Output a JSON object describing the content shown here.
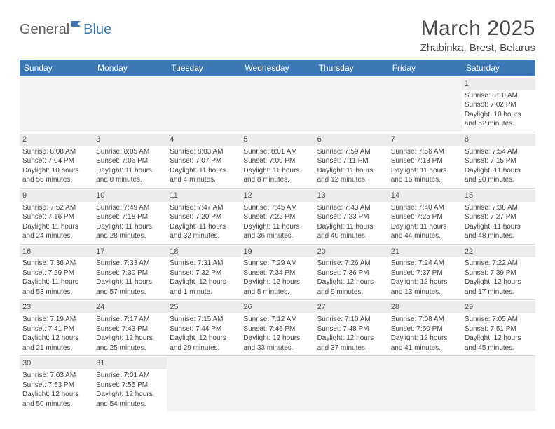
{
  "logo": {
    "general": "General",
    "blue": "Blue"
  },
  "title": "March 2025",
  "location": "Zhabinka, Brest, Belarus",
  "colors": {
    "header_bg": "#3c78b4",
    "header_text": "#ffffff",
    "page_bg": "#ffffff",
    "text": "#464646",
    "daynum_bg": "#ececec",
    "empty_bg": "#f4f4f4",
    "border": "#d8d8d8"
  },
  "columns": [
    "Sunday",
    "Monday",
    "Tuesday",
    "Wednesday",
    "Thursday",
    "Friday",
    "Saturday"
  ],
  "weeks": [
    [
      null,
      null,
      null,
      null,
      null,
      null,
      {
        "n": "1",
        "sr": "8:10 AM",
        "ss": "7:02 PM",
        "dl": "10 hours and 52 minutes."
      }
    ],
    [
      {
        "n": "2",
        "sr": "8:08 AM",
        "ss": "7:04 PM",
        "dl": "10 hours and 56 minutes."
      },
      {
        "n": "3",
        "sr": "8:05 AM",
        "ss": "7:06 PM",
        "dl": "11 hours and 0 minutes."
      },
      {
        "n": "4",
        "sr": "8:03 AM",
        "ss": "7:07 PM",
        "dl": "11 hours and 4 minutes."
      },
      {
        "n": "5",
        "sr": "8:01 AM",
        "ss": "7:09 PM",
        "dl": "11 hours and 8 minutes."
      },
      {
        "n": "6",
        "sr": "7:59 AM",
        "ss": "7:11 PM",
        "dl": "11 hours and 12 minutes."
      },
      {
        "n": "7",
        "sr": "7:56 AM",
        "ss": "7:13 PM",
        "dl": "11 hours and 16 minutes."
      },
      {
        "n": "8",
        "sr": "7:54 AM",
        "ss": "7:15 PM",
        "dl": "11 hours and 20 minutes."
      }
    ],
    [
      {
        "n": "9",
        "sr": "7:52 AM",
        "ss": "7:16 PM",
        "dl": "11 hours and 24 minutes."
      },
      {
        "n": "10",
        "sr": "7:49 AM",
        "ss": "7:18 PM",
        "dl": "11 hours and 28 minutes."
      },
      {
        "n": "11",
        "sr": "7:47 AM",
        "ss": "7:20 PM",
        "dl": "11 hours and 32 minutes."
      },
      {
        "n": "12",
        "sr": "7:45 AM",
        "ss": "7:22 PM",
        "dl": "11 hours and 36 minutes."
      },
      {
        "n": "13",
        "sr": "7:43 AM",
        "ss": "7:23 PM",
        "dl": "11 hours and 40 minutes."
      },
      {
        "n": "14",
        "sr": "7:40 AM",
        "ss": "7:25 PM",
        "dl": "11 hours and 44 minutes."
      },
      {
        "n": "15",
        "sr": "7:38 AM",
        "ss": "7:27 PM",
        "dl": "11 hours and 48 minutes."
      }
    ],
    [
      {
        "n": "16",
        "sr": "7:36 AM",
        "ss": "7:29 PM",
        "dl": "11 hours and 53 minutes."
      },
      {
        "n": "17",
        "sr": "7:33 AM",
        "ss": "7:30 PM",
        "dl": "11 hours and 57 minutes."
      },
      {
        "n": "18",
        "sr": "7:31 AM",
        "ss": "7:32 PM",
        "dl": "12 hours and 1 minute."
      },
      {
        "n": "19",
        "sr": "7:29 AM",
        "ss": "7:34 PM",
        "dl": "12 hours and 5 minutes."
      },
      {
        "n": "20",
        "sr": "7:26 AM",
        "ss": "7:36 PM",
        "dl": "12 hours and 9 minutes."
      },
      {
        "n": "21",
        "sr": "7:24 AM",
        "ss": "7:37 PM",
        "dl": "12 hours and 13 minutes."
      },
      {
        "n": "22",
        "sr": "7:22 AM",
        "ss": "7:39 PM",
        "dl": "12 hours and 17 minutes."
      }
    ],
    [
      {
        "n": "23",
        "sr": "7:19 AM",
        "ss": "7:41 PM",
        "dl": "12 hours and 21 minutes."
      },
      {
        "n": "24",
        "sr": "7:17 AM",
        "ss": "7:43 PM",
        "dl": "12 hours and 25 minutes."
      },
      {
        "n": "25",
        "sr": "7:15 AM",
        "ss": "7:44 PM",
        "dl": "12 hours and 29 minutes."
      },
      {
        "n": "26",
        "sr": "7:12 AM",
        "ss": "7:46 PM",
        "dl": "12 hours and 33 minutes."
      },
      {
        "n": "27",
        "sr": "7:10 AM",
        "ss": "7:48 PM",
        "dl": "12 hours and 37 minutes."
      },
      {
        "n": "28",
        "sr": "7:08 AM",
        "ss": "7:50 PM",
        "dl": "12 hours and 41 minutes."
      },
      {
        "n": "29",
        "sr": "7:05 AM",
        "ss": "7:51 PM",
        "dl": "12 hours and 45 minutes."
      }
    ],
    [
      {
        "n": "30",
        "sr": "7:03 AM",
        "ss": "7:53 PM",
        "dl": "12 hours and 50 minutes."
      },
      {
        "n": "31",
        "sr": "7:01 AM",
        "ss": "7:55 PM",
        "dl": "12 hours and 54 minutes."
      },
      null,
      null,
      null,
      null,
      null
    ]
  ],
  "labels": {
    "sunrise": "Sunrise: ",
    "sunset": "Sunset: ",
    "daylight": "Daylight: "
  }
}
